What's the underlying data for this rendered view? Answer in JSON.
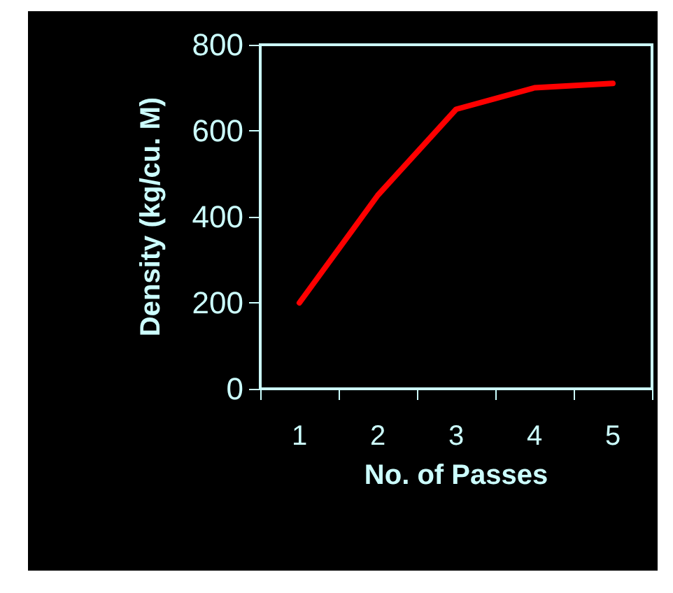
{
  "chart_data": {
    "type": "line",
    "xlabel": "No. of Passes",
    "ylabel": "Density (kg/cu. M)",
    "categories": [
      "1",
      "2",
      "3",
      "4",
      "5"
    ],
    "series": [
      {
        "color": "#ff0000",
        "values": [
          200,
          450,
          650,
          700,
          710
        ]
      }
    ],
    "ylim": [
      0,
      800
    ],
    "yticks": [
      0,
      200,
      400,
      600,
      800
    ],
    "grid": false,
    "marker": "none",
    "line_style": "solid"
  }
}
